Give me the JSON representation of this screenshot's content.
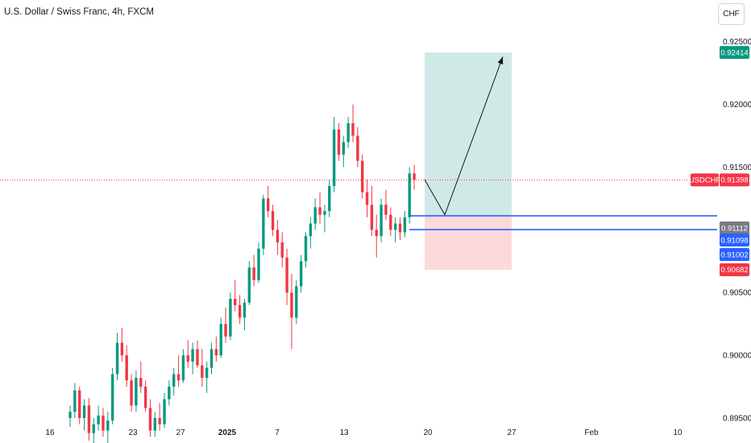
{
  "title": "U.S. Dollar / Swiss Franc, 4h, FXCM",
  "currency_button": "CHF",
  "colors": {
    "up": "#089981",
    "down": "#f23645",
    "target_zone": "#cfeae6",
    "stop_zone": "#fcd9da",
    "entry_badge": "#2962ff",
    "last_price": "#f23645",
    "target_badge": "#089981",
    "blue_line": "#2962ff",
    "entry_line_badge": "#787b86"
  },
  "chart_data": {
    "type": "candlestick",
    "symbol": "USDCHF",
    "timeframe": "4h",
    "y_range": [
      0.895,
      0.928
    ],
    "y_ticks": [
      "0.92500",
      "0.92000",
      "0.91500",
      "0.90500",
      "0.90000",
      "0.89500"
    ],
    "x_ticks": [
      "16",
      "23",
      "27",
      "2025",
      "7",
      "13",
      "20",
      "27",
      "Feb",
      "10"
    ],
    "price_labels": [
      {
        "label": "0.92414",
        "value": 0.92414,
        "kind": "target"
      },
      {
        "label": "USDCHF",
        "value": 0.91398,
        "kind": "symbol"
      },
      {
        "label": "0.91398",
        "value": 0.91398,
        "kind": "last"
      },
      {
        "label": "0.91112",
        "value": 0.91112,
        "kind": "entry"
      },
      {
        "label": "0.91098",
        "value": 0.91098,
        "kind": "line"
      },
      {
        "label": "0.91002",
        "value": 0.91002,
        "kind": "line"
      },
      {
        "label": "0.90682",
        "value": 0.90682,
        "kind": "stop"
      }
    ],
    "position": {
      "entry": 0.91112,
      "target": 0.92414,
      "stop": 0.90682
    },
    "horizontal_lines": [
      0.91112,
      0.91002
    ],
    "projection_path": [
      [
        0.914,
        0
      ],
      [
        0.9112,
        1
      ],
      [
        0.9238,
        2
      ]
    ],
    "candles": [
      [
        0.895,
        0.896,
        0.8943,
        0.8955
      ],
      [
        0.8955,
        0.8978,
        0.895,
        0.8972
      ],
      [
        0.8972,
        0.8975,
        0.8945,
        0.895
      ],
      [
        0.895,
        0.8965,
        0.894,
        0.896
      ],
      [
        0.896,
        0.8966,
        0.8932,
        0.8938
      ],
      [
        0.8938,
        0.895,
        0.892,
        0.8945
      ],
      [
        0.8945,
        0.896,
        0.894,
        0.8952
      ],
      [
        0.8952,
        0.8958,
        0.8935,
        0.894
      ],
      [
        0.894,
        0.8955,
        0.893,
        0.8948
      ],
      [
        0.8948,
        0.899,
        0.8945,
        0.8985
      ],
      [
        0.8985,
        0.9018,
        0.898,
        0.901
      ],
      [
        0.901,
        0.9022,
        0.8995,
        0.9
      ],
      [
        0.9,
        0.9008,
        0.8975,
        0.898
      ],
      [
        0.898,
        0.8985,
        0.8955,
        0.896
      ],
      [
        0.896,
        0.8988,
        0.8955,
        0.8982
      ],
      [
        0.8982,
        0.8995,
        0.897,
        0.8975
      ],
      [
        0.8975,
        0.898,
        0.8955,
        0.8958
      ],
      [
        0.8958,
        0.8965,
        0.8935,
        0.894
      ],
      [
        0.894,
        0.8955,
        0.8935,
        0.895
      ],
      [
        0.895,
        0.8962,
        0.894,
        0.8945
      ],
      [
        0.8945,
        0.897,
        0.8942,
        0.8965
      ],
      [
        0.8965,
        0.898,
        0.896,
        0.8975
      ],
      [
        0.8975,
        0.899,
        0.8968,
        0.8985
      ],
      [
        0.8985,
        0.9,
        0.8975,
        0.898
      ],
      [
        0.898,
        0.9005,
        0.8978,
        0.9
      ],
      [
        0.9,
        0.9012,
        0.899,
        0.8995
      ],
      [
        0.8995,
        0.901,
        0.8985,
        0.9005
      ],
      [
        0.9005,
        0.9012,
        0.899,
        0.8992
      ],
      [
        0.8992,
        0.9005,
        0.8975,
        0.8982
      ],
      [
        0.8982,
        0.8995,
        0.897,
        0.899
      ],
      [
        0.899,
        0.901,
        0.8985,
        0.9005
      ],
      [
        0.9005,
        0.9015,
        0.8995,
        0.9
      ],
      [
        0.9,
        0.903,
        0.8998,
        0.9025
      ],
      [
        0.9025,
        0.9038,
        0.901,
        0.9015
      ],
      [
        0.9015,
        0.905,
        0.9012,
        0.9045
      ],
      [
        0.9045,
        0.906,
        0.9035,
        0.904
      ],
      [
        0.904,
        0.9048,
        0.9025,
        0.903
      ],
      [
        0.903,
        0.9045,
        0.902,
        0.9042
      ],
      [
        0.9042,
        0.9075,
        0.904,
        0.907
      ],
      [
        0.907,
        0.908,
        0.9055,
        0.906
      ],
      [
        0.906,
        0.909,
        0.9058,
        0.9085
      ],
      [
        0.9085,
        0.9128,
        0.908,
        0.9125
      ],
      [
        0.9125,
        0.9135,
        0.911,
        0.9115
      ],
      [
        0.9115,
        0.912,
        0.9095,
        0.91
      ],
      [
        0.91,
        0.9108,
        0.908,
        0.909
      ],
      [
        0.909,
        0.9098,
        0.907,
        0.9078
      ],
      [
        0.9078,
        0.9085,
        0.904,
        0.905
      ],
      [
        0.905,
        0.9065,
        0.9005,
        0.903
      ],
      [
        0.903,
        0.906,
        0.9025,
        0.9055
      ],
      [
        0.9055,
        0.908,
        0.905,
        0.9075
      ],
      [
        0.9075,
        0.9098,
        0.907,
        0.9095
      ],
      [
        0.9095,
        0.911,
        0.9085,
        0.9105
      ],
      [
        0.9105,
        0.9125,
        0.91,
        0.9118
      ],
      [
        0.9118,
        0.913,
        0.9105,
        0.9112
      ],
      [
        0.9112,
        0.912,
        0.9098,
        0.9115
      ],
      [
        0.9115,
        0.914,
        0.911,
        0.9135
      ],
      [
        0.9135,
        0.919,
        0.913,
        0.918
      ],
      [
        0.918,
        0.9185,
        0.9155,
        0.916
      ],
      [
        0.916,
        0.9175,
        0.915,
        0.917
      ],
      [
        0.917,
        0.919,
        0.9165,
        0.9185
      ],
      [
        0.9185,
        0.92,
        0.917,
        0.9175
      ],
      [
        0.9175,
        0.9182,
        0.915,
        0.9155
      ],
      [
        0.9155,
        0.916,
        0.9125,
        0.913
      ],
      [
        0.913,
        0.914,
        0.911,
        0.912
      ],
      [
        0.912,
        0.9135,
        0.9095,
        0.91
      ],
      [
        0.91,
        0.9112,
        0.9078,
        0.9095
      ],
      [
        0.9095,
        0.9125,
        0.909,
        0.912
      ],
      [
        0.912,
        0.9132,
        0.9108,
        0.9112
      ],
      [
        0.9112,
        0.9118,
        0.9095,
        0.91
      ],
      [
        0.91,
        0.911,
        0.909,
        0.9105
      ],
      [
        0.9105,
        0.911,
        0.9092,
        0.9098
      ],
      [
        0.9098,
        0.9115,
        0.9094,
        0.911
      ],
      [
        0.911,
        0.915,
        0.9105,
        0.9145
      ],
      [
        0.9145,
        0.9152,
        0.9132,
        0.914
      ]
    ]
  }
}
